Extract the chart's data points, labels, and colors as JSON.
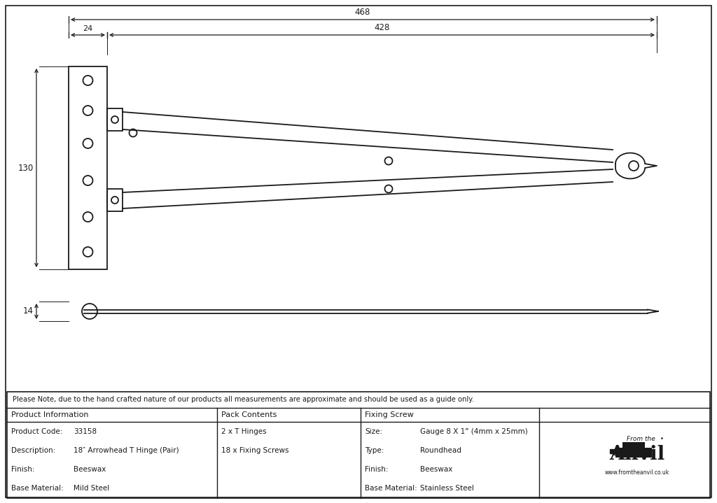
{
  "bg_color": "#ffffff",
  "line_color": "#1a1a1a",
  "note_text": "Please Note, due to the hand crafted nature of our products all measurements are approximate and should be used as a guide only.",
  "product_info": {
    "header": "Product Information",
    "items": [
      [
        "Product Code:",
        "33158"
      ],
      [
        "Description:",
        "18″ Arrowhead T Hinge (Pair)"
      ],
      [
        "Finish:",
        "Beeswax"
      ],
      [
        "Base Material:",
        "Mild Steel"
      ]
    ]
  },
  "pack_contents": {
    "header": "Pack Contents",
    "items": [
      "2 x T Hinges",
      "18 x Fixing Screws"
    ]
  },
  "fixing_screw": {
    "header": "Fixing Screw",
    "items": [
      [
        "Size:",
        "Gauge 8 X 1” (4mm x 25mm)"
      ],
      [
        "Type:",
        "Roundhead"
      ],
      [
        "Finish:",
        "Beeswax"
      ],
      [
        "Base Material:",
        "Stainless Steel"
      ]
    ]
  },
  "dim_468": "468",
  "dim_428": "428",
  "dim_24": "24",
  "dim_130": "130",
  "dim_14": "14"
}
